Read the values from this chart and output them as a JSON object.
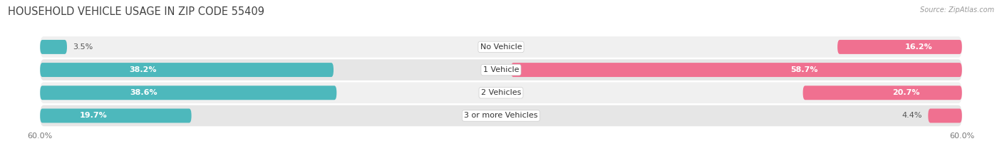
{
  "title": "HOUSEHOLD VEHICLE USAGE IN ZIP CODE 55409",
  "source": "Source: ZipAtlas.com",
  "categories": [
    "No Vehicle",
    "1 Vehicle",
    "2 Vehicles",
    "3 or more Vehicles"
  ],
  "owner_values": [
    3.5,
    38.2,
    38.6,
    19.7
  ],
  "renter_values": [
    16.2,
    58.7,
    20.7,
    4.4
  ],
  "owner_color": "#4db8bc",
  "renter_color": "#f07090",
  "axis_max": 60.0,
  "x_tick_label": "60.0%",
  "title_fontsize": 10.5,
  "label_fontsize": 8,
  "category_fontsize": 8,
  "tick_fontsize": 8,
  "source_fontsize": 7,
  "background_color": "#ffffff",
  "row_bg_color": "#f0f0f0",
  "row_alt_bg_color": "#e6e6e6"
}
